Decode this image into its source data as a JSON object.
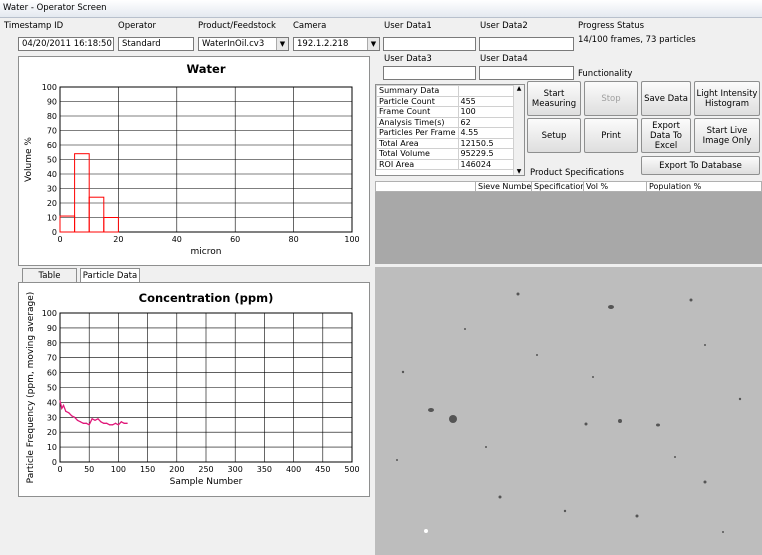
{
  "window": {
    "title": "Water - Operator Screen"
  },
  "header": {
    "timestamp_label": "Timestamp ID",
    "timestamp_value": "04/20/2011 16:18:50",
    "operator_label": "Operator",
    "operator_value": "Standard",
    "product_label": "Product/Feedstock",
    "product_value": "WaterInOil.cv3",
    "camera_label": "Camera",
    "camera_value": "192.1.2.218",
    "user1_label": "User Data1",
    "user1_value": "",
    "user2_label": "User Data2",
    "user2_value": "",
    "user3_label": "User Data3",
    "user3_value": "",
    "user4_label": "User Data4",
    "user4_value": "",
    "progress_label": "Progress Status",
    "progress_value": "14/100 frames, 73 particles",
    "functionality_label": "Functionality"
  },
  "summary": {
    "header": "Summary Data",
    "rows": [
      {
        "k": "Particle Count",
        "v": "455"
      },
      {
        "k": "Frame Count",
        "v": "100"
      },
      {
        "k": "Analysis Time(s)",
        "v": "62"
      },
      {
        "k": "Particles Per Frame",
        "v": "4.55"
      },
      {
        "k": "Total Area",
        "v": "12150.5"
      },
      {
        "k": "Total Volume",
        "v": "95229.5"
      },
      {
        "k": "ROI Area",
        "v": "146024"
      }
    ]
  },
  "buttons": {
    "start": "Start Measuring",
    "stop": "Stop",
    "save": "Save Data",
    "histogram": "Light Intensity Histogram",
    "setup": "Setup",
    "print": "Print",
    "export_excel": "Export Data To Excel",
    "live_image": "Start Live Image Only",
    "export_db": "Export To Database"
  },
  "product_specs": {
    "label": "Product Specifications",
    "columns": [
      "Sieve Number",
      "Specification",
      "Vol %",
      "Population %"
    ]
  },
  "tabs": [
    "Table",
    "Particle Data"
  ],
  "colors": {
    "series": "#ff0000",
    "concentration": "#e0197a",
    "image_bg": "#bdbdbd"
  },
  "chart_data": [
    {
      "type": "bar",
      "title": "Water",
      "xlabel": "micron",
      "ylabel": "Volume %",
      "xlim": [
        0,
        100
      ],
      "ylim": [
        0,
        100
      ],
      "xticks": [
        0,
        20,
        40,
        60,
        80,
        100
      ],
      "yticks": [
        0,
        10,
        20,
        30,
        40,
        50,
        60,
        70,
        80,
        90,
        100
      ],
      "bins": [
        {
          "x0": 0,
          "x1": 5,
          "value": 11
        },
        {
          "x0": 5,
          "x1": 10,
          "value": 54
        },
        {
          "x0": 10,
          "x1": 15,
          "value": 24
        },
        {
          "x0": 15,
          "x1": 20,
          "value": 10
        }
      ],
      "grid": true
    },
    {
      "type": "line",
      "title": "Concentration (ppm)",
      "xlabel": "Sample Number",
      "ylabel": "Particle Frequency (ppm, moving average)",
      "xlim": [
        0,
        500
      ],
      "ylim": [
        0,
        100
      ],
      "xticks": [
        0,
        50,
        100,
        150,
        200,
        250,
        300,
        350,
        400,
        450,
        500
      ],
      "yticks": [
        0,
        10,
        20,
        30,
        40,
        50,
        60,
        70,
        80,
        90,
        100
      ],
      "x": [
        0,
        3,
        6,
        10,
        15,
        20,
        25,
        30,
        35,
        40,
        45,
        50,
        55,
        60,
        65,
        70,
        75,
        80,
        85,
        90,
        95,
        100,
        105,
        110,
        115
      ],
      "y": [
        41,
        36,
        38,
        34,
        33,
        31,
        30,
        28,
        27,
        26,
        26,
        25,
        29,
        28,
        29,
        27,
        26,
        26,
        25,
        25,
        26,
        25,
        27,
        26,
        26
      ],
      "grid": true
    }
  ]
}
